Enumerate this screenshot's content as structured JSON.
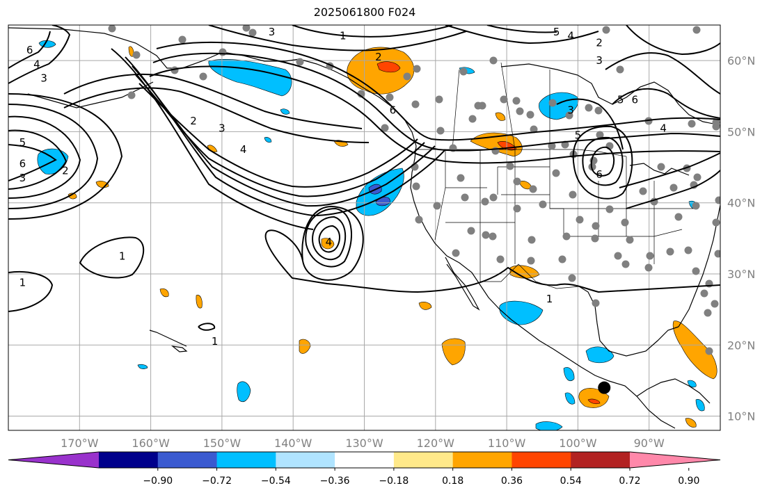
{
  "title": "2025061800 F024",
  "map": {
    "projection": "plate-carree",
    "lon_range": [
      -180,
      -80
    ],
    "lat_range": [
      8,
      65
    ],
    "gridlines": true,
    "lon_ticks": [
      {
        "value": -170,
        "label": "170°W"
      },
      {
        "value": -160,
        "label": "160°W"
      },
      {
        "value": -150,
        "label": "150°W"
      },
      {
        "value": -140,
        "label": "140°W"
      },
      {
        "value": -130,
        "label": "130°W"
      },
      {
        "value": -120,
        "label": "120°W"
      },
      {
        "value": -110,
        "label": "110°W"
      },
      {
        "value": -100,
        "label": "100°W"
      },
      {
        "value": -90,
        "label": "90°W"
      }
    ],
    "lat_ticks": [
      {
        "value": 10,
        "label": "10°N"
      },
      {
        "value": 20,
        "label": "20°N"
      },
      {
        "value": 30,
        "label": "30°N"
      },
      {
        "value": 40,
        "label": "40°N"
      },
      {
        "value": 50,
        "label": "50°N"
      },
      {
        "value": 60,
        "label": "60°N"
      }
    ],
    "contour_labels": [
      {
        "text": "1",
        "lon": -164,
        "lat": 32.5
      },
      {
        "text": "1",
        "lon": -178,
        "lat": 28.8
      },
      {
        "text": "1",
        "lon": -133,
        "lat": 63.5
      },
      {
        "text": "1",
        "lon": -151,
        "lat": 20.5
      },
      {
        "text": "3",
        "lon": -178,
        "lat": 43.5
      },
      {
        "text": "4",
        "lon": -135,
        "lat": 34.5
      },
      {
        "text": "6",
        "lon": -177,
        "lat": 61.5
      },
      {
        "text": "4",
        "lon": -176,
        "lat": 59.5
      },
      {
        "text": "3",
        "lon": -175,
        "lat": 57.5
      },
      {
        "text": "5",
        "lon": -178,
        "lat": 48.5
      },
      {
        "text": "6",
        "lon": -178,
        "lat": 45.5
      },
      {
        "text": "2",
        "lon": -172,
        "lat": 44.5
      },
      {
        "text": "2",
        "lon": -154,
        "lat": 51.5
      },
      {
        "text": "3",
        "lon": -150,
        "lat": 50.5
      },
      {
        "text": "4",
        "lon": -147,
        "lat": 47.5
      },
      {
        "text": "3",
        "lon": -143,
        "lat": 64.0
      },
      {
        "text": "2",
        "lon": -128,
        "lat": 60.5
      },
      {
        "text": "6",
        "lon": -126,
        "lat": 53.0
      },
      {
        "text": "5",
        "lon": -103,
        "lat": 64.0
      },
      {
        "text": "4",
        "lon": -101,
        "lat": 63.5
      },
      {
        "text": "2",
        "lon": -97,
        "lat": 62.5
      },
      {
        "text": "3",
        "lon": -97,
        "lat": 60.0
      },
      {
        "text": "5",
        "lon": -94,
        "lat": 54.5
      },
      {
        "text": "6",
        "lon": -92,
        "lat": 54.5
      },
      {
        "text": "3",
        "lon": -101,
        "lat": 53.0
      },
      {
        "text": "5",
        "lon": -100,
        "lat": 49.5
      },
      {
        "text": "6",
        "lon": -97,
        "lat": 44.0
      },
      {
        "text": "4",
        "lon": -88,
        "lat": 50.5
      },
      {
        "text": "1",
        "lon": -104,
        "lat": 26.5
      }
    ],
    "marker": {
      "lon": -96.3,
      "lat": 14.0
    }
  },
  "colorbar": {
    "colors": [
      "#9932cc",
      "#00008b",
      "#3a5ad0",
      "#00bfff",
      "#b0e4ff",
      "#ffffff",
      "#ffe98a",
      "#ffa500",
      "#ff4500",
      "#b22222",
      "#ff88aa"
    ],
    "ticks": [
      "−0.90",
      "−0.72",
      "−0.54",
      "−0.36",
      "−0.18",
      "0.18",
      "0.36",
      "0.54",
      "0.72",
      "0.90"
    ]
  }
}
